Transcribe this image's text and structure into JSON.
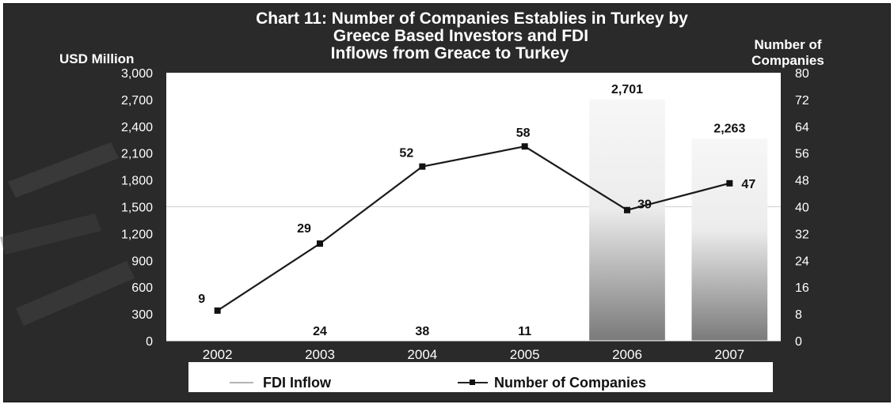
{
  "chart_data": {
    "type": "bar+line",
    "title_lines": [
      "Chart 11: Number of Companies Establies in Turkey by",
      "Greece Based Investors and FDI",
      "Inflows from Greace to Turkey"
    ],
    "left_axis_label": "USD Million",
    "right_axis_label_lines": [
      "Number of",
      "Companies"
    ],
    "categories": [
      "2002",
      "2003",
      "2004",
      "2005",
      "2006",
      "2007"
    ],
    "left_ylim": [
      0,
      3000
    ],
    "left_ticks": [
      "0",
      "300",
      "600",
      "900",
      "1,200",
      "1,500",
      "1,800",
      "2,100",
      "2,400",
      "2,700",
      "3,000"
    ],
    "right_ylim": [
      0,
      80
    ],
    "right_ticks": [
      "0",
      "8",
      "16",
      "24",
      "32",
      "40",
      "48",
      "56",
      "64",
      "72",
      "80"
    ],
    "bar_series": {
      "name": "FDI Inflow",
      "values": [
        0,
        24,
        38,
        11,
        2701,
        2263
      ],
      "labels": [
        "",
        "24",
        "38",
        "11",
        "2,701",
        "2,263"
      ]
    },
    "line_series": {
      "name": "Number of Companies",
      "values": [
        9,
        29,
        52,
        58,
        39,
        47
      ],
      "labels": [
        "9",
        "29",
        "52",
        "58",
        "39",
        "47"
      ]
    },
    "reference_line_left_value": 1500,
    "legend": {
      "items": [
        "FDI Inflow",
        "Number of Companies"
      ],
      "position": "bottom"
    }
  }
}
